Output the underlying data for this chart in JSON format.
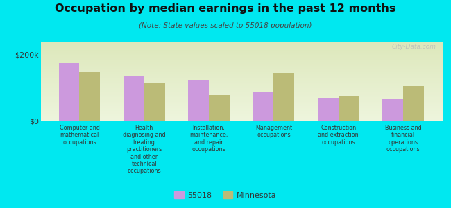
{
  "title": "Occupation by median earnings in the past 12 months",
  "subtitle": "(Note: State values scaled to 55018 population)",
  "categories": [
    "Computer and\nmathematical\noccupations",
    "Health\ndiagnosing and\ntreating\npractitioners\nand other\ntechnical\noccupations",
    "Installation,\nmaintenance,\nand repair\noccupations",
    "Management\noccupations",
    "Construction\nand extraction\noccupations",
    "Business and\nfinancial\noperations\noccupations"
  ],
  "values_55018": [
    175000,
    135000,
    125000,
    88000,
    68000,
    65000
  ],
  "values_minnesota": [
    148000,
    115000,
    78000,
    145000,
    75000,
    105000
  ],
  "color_55018": "#cc99dd",
  "color_minnesota": "#bbbb77",
  "ylim": [
    0,
    240000
  ],
  "yticks": [
    0,
    200000
  ],
  "ytick_labels": [
    "$0",
    "$200k"
  ],
  "background_color": "#00e8f0",
  "plot_bg_top": "#dde8bb",
  "plot_bg_bottom": "#eef5dd",
  "legend_label_55018": "55018",
  "legend_label_minnesota": "Minnesota",
  "watermark": "City-Data.com"
}
